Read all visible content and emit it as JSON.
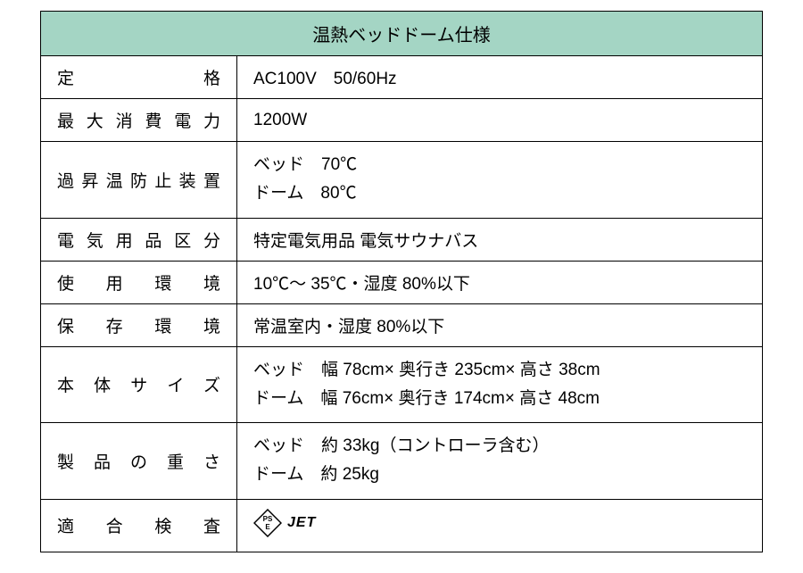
{
  "table": {
    "title": "温熱ベッドドーム仕様",
    "header_bg": "#a4d5c4",
    "border_color": "#000000",
    "text_color": "#000000",
    "font_size_header": 20,
    "font_size_body": 19,
    "rows": [
      {
        "label": "定格",
        "value": "AC100V　50/60Hz"
      },
      {
        "label": "最大消費電力",
        "value": "1200W"
      },
      {
        "label": "過昇温防止装置",
        "value_lines": [
          "ベッド　70℃",
          "ドーム　80℃"
        ]
      },
      {
        "label": "電気用品区分",
        "value": "特定電気用品 電気サウナバス"
      },
      {
        "label": "使用環境",
        "value": "10℃～ 35℃・湿度 80%以下"
      },
      {
        "label": "保存環境",
        "value": "常温室内・湿度 80%以下"
      },
      {
        "label": "本体サイズ",
        "value_lines": [
          "ベッド　幅 78cm× 奥行き 235cm× 高さ 38cm",
          "ドーム　幅 76cm× 奥行き 174cm× 高さ 48cm"
        ]
      },
      {
        "label": "製品の重さ",
        "value_lines": [
          "ベッド　約 33kg（コントローラ含む）",
          "ドーム　約 25kg"
        ]
      },
      {
        "label": "適合検査",
        "value_pse_jet": true,
        "pse_top": "PS",
        "pse_bottom": "E",
        "jet": "JET"
      }
    ]
  }
}
